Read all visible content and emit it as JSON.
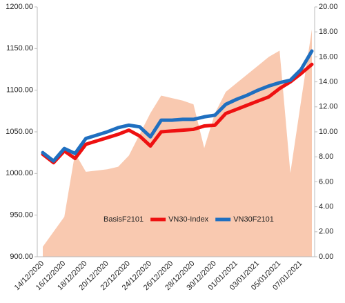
{
  "chart_data": {
    "type": "line",
    "categories": [
      "14/12/2020",
      null,
      "16/12/2020",
      null,
      "18/12/2020",
      null,
      "20/12/2020",
      null,
      "22/12/2020",
      null,
      "24/12/2020",
      null,
      "26/12/2020",
      null,
      "28/12/2020",
      null,
      "30/12/2020",
      null,
      "01/01/2021",
      null,
      "03/01/2021",
      null,
      "05/01/2021",
      null,
      "07/01/2021",
      null
    ],
    "series": [
      {
        "name": "BasisF2101",
        "type": "area",
        "axis": "y2",
        "color": "#f9c9b0",
        "values": [
          0.8,
          2.0,
          3.2,
          8.3,
          6.8,
          6.9,
          7.0,
          7.2,
          8.1,
          9.8,
          11.5,
          12.9,
          12.7,
          12.5,
          12.2,
          8.7,
          11.5,
          13.2,
          13.9,
          14.6,
          15.3,
          16.0,
          16.5,
          6.7,
          12.5,
          18.2
        ]
      },
      {
        "name": "VN30-Index",
        "type": "line",
        "color": "#ee1111",
        "values": [
          1023,
          1013,
          1027,
          1018,
          1035,
          1039,
          1043,
          1047,
          1052,
          1045,
          1033,
          1050,
          1051,
          1052,
          1053,
          1057,
          1058,
          1072,
          1077,
          1082,
          1087,
          1092,
          1102,
          1110,
          1120,
          1131
        ]
      },
      {
        "name": "VN30F2101",
        "type": "line",
        "color": "#1f6fc0",
        "values": [
          1025,
          1015,
          1030,
          1024,
          1042,
          1046,
          1050,
          1055,
          1058,
          1056,
          1044,
          1064,
          1064,
          1065,
          1065,
          1068,
          1070,
          1083,
          1089,
          1094,
          1100,
          1105,
          1109,
          1112,
          1125,
          1147
        ]
      }
    ],
    "ylim": [
      900,
      1200
    ],
    "yticks": [
      {
        "value": 900,
        "label": "900.00"
      },
      {
        "value": 950,
        "label": "950.00"
      },
      {
        "value": 1000,
        "label": "1000.00"
      },
      {
        "value": 1050,
        "label": "1050.00"
      },
      {
        "value": 1100,
        "label": "1100.00"
      },
      {
        "value": 1150,
        "label": "1150.00"
      },
      {
        "value": 1200,
        "label": "1200.00"
      }
    ],
    "y2lim": [
      0,
      20
    ],
    "y2ticks": [
      {
        "value": 0,
        "label": "0.00"
      },
      {
        "value": 2,
        "label": "2.00"
      },
      {
        "value": 4,
        "label": "4.00"
      },
      {
        "value": 6,
        "label": "6.00"
      },
      {
        "value": 8,
        "label": "8.00"
      },
      {
        "value": 10,
        "label": "10.00"
      },
      {
        "value": 12,
        "label": "12.00"
      },
      {
        "value": 14,
        "label": "14.00"
      },
      {
        "value": 16,
        "label": "16.00"
      },
      {
        "value": 18,
        "label": "18.00"
      },
      {
        "value": 20,
        "label": "20.00"
      }
    ],
    "legend": "bottom",
    "grid": false
  }
}
